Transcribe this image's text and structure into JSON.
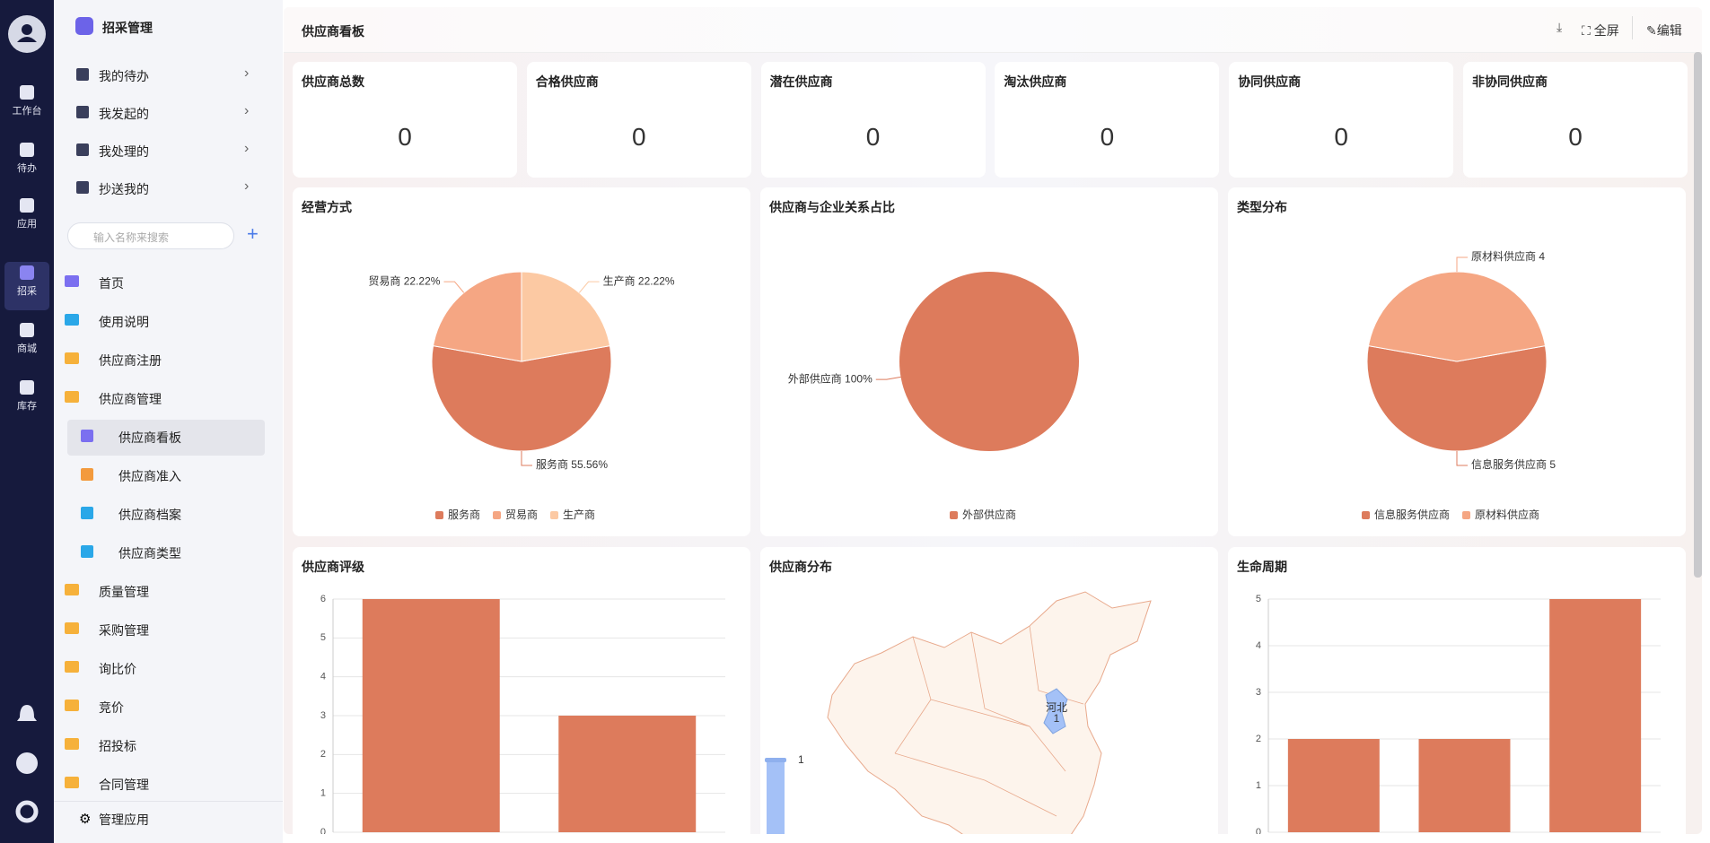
{
  "rail": {
    "items": [
      "工作台",
      "待办",
      "应用",
      "招采",
      "商城",
      "库存"
    ]
  },
  "sidebar": {
    "title": "招采管理",
    "quick": [
      "我的待办",
      "我发起的",
      "我处理的",
      "抄送我的"
    ],
    "search": "输入名称来搜索",
    "menu": [
      {
        "label": "首页"
      },
      {
        "label": "使用说明"
      },
      {
        "label": "供应商注册"
      },
      {
        "label": "供应商管理",
        "children": [
          "供应商看板",
          "供应商准入",
          "供应商档案",
          "供应商类型"
        ]
      },
      {
        "label": "质量管理"
      },
      {
        "label": "采购管理"
      },
      {
        "label": "询比价"
      },
      {
        "label": "竞价"
      },
      {
        "label": "招投标"
      },
      {
        "label": "合同管理"
      }
    ],
    "footer": "管理应用"
  },
  "header": {
    "title": "供应商看板",
    "actions": [
      "全屏",
      "编辑"
    ]
  },
  "stats": [
    {
      "label": "供应商总数",
      "value": 0
    },
    {
      "label": "合格供应商",
      "value": 0
    },
    {
      "label": "潜在供应商",
      "value": 0
    },
    {
      "label": "淘汰供应商",
      "value": 0
    },
    {
      "label": "协同供应商",
      "value": 0
    },
    {
      "label": "非协同供应商",
      "value": 0
    }
  ],
  "charts": [
    {
      "type": "pie",
      "title": "经营方式",
      "categories": [
        "服务商",
        "贸易商",
        "生产商"
      ],
      "values": [
        55.56,
        22.22,
        22.22
      ],
      "value_labels": [
        "服务商 55.56%",
        "贸易商 22.22%",
        "生产商 22.22%"
      ],
      "colors": [
        "#dd7b5c",
        "#f5a683",
        "#fcc9a3"
      ]
    },
    {
      "type": "pie",
      "title": "供应商与企业关系占比",
      "categories": [
        "外部供应商"
      ],
      "values": [
        100
      ],
      "value_labels": [
        "外部供应商 100%"
      ],
      "colors": [
        "#dd7b5c"
      ]
    },
    {
      "type": "pie",
      "title": "类型分布",
      "categories": [
        "信息服务供应商",
        "原材料供应商"
      ],
      "values": [
        5,
        4
      ],
      "value_labels": [
        "信息服务供应商 5",
        "原材料供应商 4"
      ],
      "colors": [
        "#dd7b5c",
        "#f5a683"
      ]
    },
    {
      "type": "bar",
      "title": "供应商评级",
      "categories": [
        null,
        null
      ],
      "values": [
        6,
        3
      ],
      "color": "#dd7b5c",
      "ylim": [
        0,
        6
      ],
      "yticks": [
        0,
        1,
        2,
        3,
        4,
        5,
        6
      ],
      "grid": true
    },
    {
      "type": "map",
      "title": "供应商分布",
      "regions": [
        {
          "name": "河北",
          "value": 1
        }
      ],
      "visual_map": {
        "max": 1,
        "color": "#a4c1f7"
      }
    },
    {
      "type": "bar",
      "title": "生命周期",
      "categories": [
        null,
        null,
        null
      ],
      "values": [
        2,
        2,
        5
      ],
      "color": "#dd7b5c",
      "ylim": [
        0,
        5
      ],
      "yticks": [
        0,
        1,
        2,
        3,
        4,
        5
      ],
      "grid": true
    }
  ]
}
